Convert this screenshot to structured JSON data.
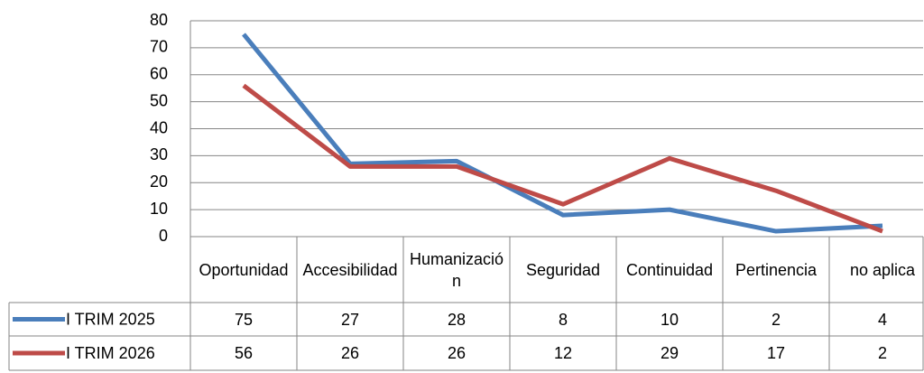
{
  "chart_data": {
    "type": "line",
    "categories": [
      "Oportunidad",
      "Accesibilidad",
      "Humanización",
      "Seguridad",
      "Continuidad",
      "Pertinencia",
      "no aplica"
    ],
    "series": [
      {
        "name": "I TRIM 2025",
        "color": "#4a7ebb",
        "values": [
          75,
          27,
          28,
          8,
          10,
          2,
          4
        ]
      },
      {
        "name": "I TRIM 2026",
        "color": "#be4b48",
        "values": [
          56,
          26,
          26,
          12,
          29,
          17,
          2
        ]
      }
    ],
    "ylim": [
      0,
      80
    ],
    "yticks": [
      0,
      10,
      20,
      30,
      40,
      50,
      60,
      70,
      80
    ],
    "grid": true,
    "data_table": true
  }
}
